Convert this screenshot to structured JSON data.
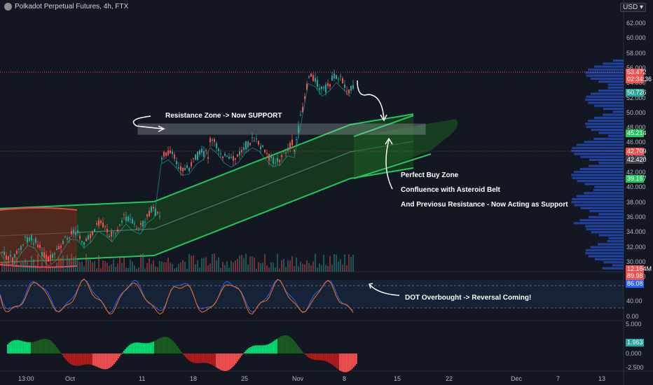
{
  "header": {
    "title": "Polkadot Perpetual Futures, 4h, FTX",
    "currency": "USD",
    "currency_chevron": "chevron-down-icon"
  },
  "colors": {
    "background": "#131722",
    "up": "#26a69a",
    "down": "#ef5350",
    "band_green": "#22c55e",
    "band_red": "#ef4444",
    "annotation": "#ffffff",
    "volume_profile": "#2962ff"
  },
  "price_axis": {
    "ticks": [
      "62.000",
      "60.000",
      "58.000",
      "56.000",
      "54.000",
      "52.000",
      "50.000",
      "48.000",
      "46.000",
      "44.000",
      "42.000",
      "40.000",
      "38.000",
      "36.000",
      "34.000",
      "32.000",
      "30.000",
      "28.000"
    ]
  },
  "price_tags": [
    {
      "text": "53.472",
      "color": "#ef5350"
    },
    {
      "text": "02:34:36",
      "color": "#ef5350"
    },
    {
      "text": "50.726",
      "color": "#26a69a"
    },
    {
      "text": "45.214",
      "color": "#22c55e"
    },
    {
      "text": "42.709",
      "color": "#ef5350"
    },
    {
      "text": "42.420",
      "color": "#434651"
    },
    {
      "text": "39.167",
      "color": "#22c55e"
    },
    {
      "text": "12.164M",
      "color": "#ef5350"
    }
  ],
  "oscillator": {
    "ticks": [
      "40.00",
      "0.00"
    ],
    "tags": [
      {
        "text": "89.98",
        "color": "#ef5350"
      },
      {
        "text": "86.08",
        "color": "#2962ff"
      }
    ]
  },
  "momentum": {
    "ticks": [
      "5.000",
      "0.000",
      "-2.500"
    ],
    "tag": {
      "text": "1.963",
      "color": "#26a69a"
    }
  },
  "time_axis": {
    "labels": [
      "13:00",
      "Oct",
      "11",
      "18",
      "25",
      "Nov",
      "8",
      "15",
      "22",
      "Dec",
      "7",
      "13"
    ]
  },
  "annotations": {
    "resistance": "Resistance Zone -> Now SUPPORT",
    "buy_zone": "Perfect Buy Zone",
    "confluence": "Confluence with Asteroid Belt",
    "previous_resistance": "And Previosu Resistance - Now Acting as Support",
    "overbought": "DOT Overbought -> Reversal Coming!"
  }
}
